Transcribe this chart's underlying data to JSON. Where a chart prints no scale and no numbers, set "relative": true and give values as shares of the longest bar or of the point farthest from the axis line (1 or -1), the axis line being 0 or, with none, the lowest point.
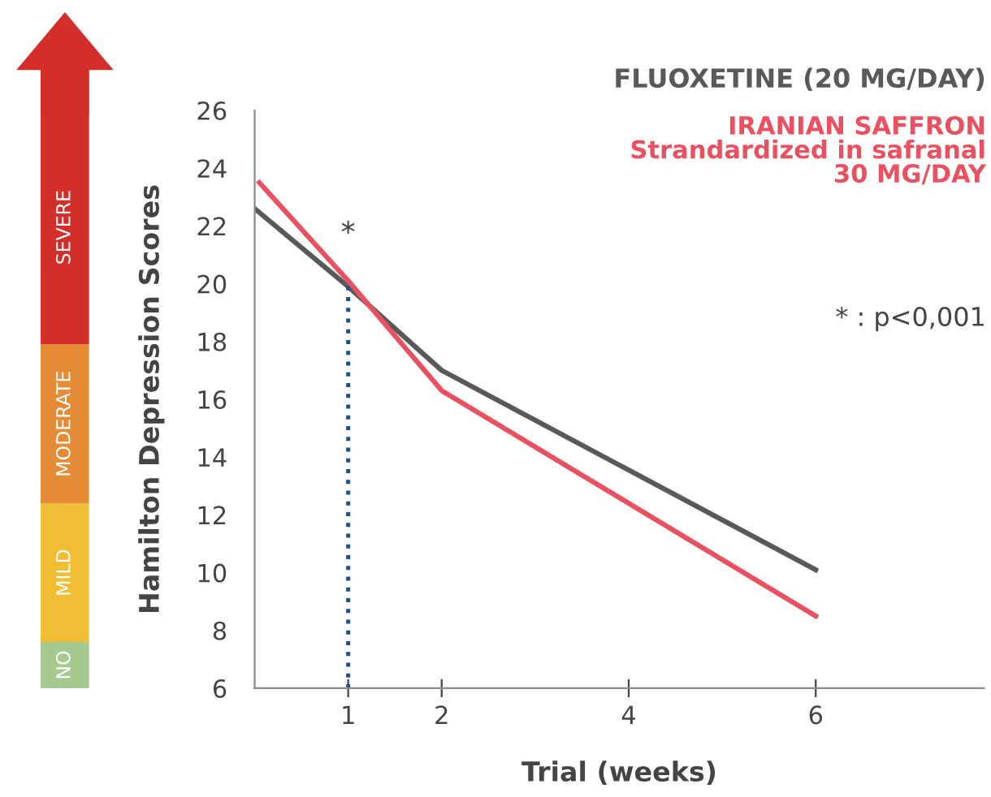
{
  "chart_data": [
    {
      "type": "bar",
      "stacked": true,
      "relative": true,
      "categories": [
        null
      ],
      "series": [
        {
          "name": "NO",
          "color": "#a6c98f",
          "values": [
            0.08
          ]
        },
        {
          "name": "MILD",
          "color": "#f0bd35",
          "values": [
            0.24
          ]
        },
        {
          "name": "MODERATE",
          "color": "#e58a35",
          "values": [
            0.275
          ]
        },
        {
          "name": "SEVERE",
          "color": "#d32f2a",
          "values": [
            0.405
          ]
        }
      ]
    },
    {
      "type": "line",
      "xlabel": "Trial (weeks)",
      "ylabel": "Hamilton Depression Scores",
      "xlim": [
        0,
        7.8
      ],
      "ylim": [
        6,
        26
      ],
      "xticks": [
        1,
        2,
        4,
        6
      ],
      "yticks": [
        6,
        8,
        10,
        12,
        14,
        16,
        18,
        20,
        22,
        24,
        26
      ],
      "legend": "top right",
      "line_style": "solid",
      "series": [
        {
          "name": "FLUOXETINE (20 MG/DAY)",
          "color": "#58595b",
          "x": [
            0,
            1,
            2,
            6
          ],
          "values": [
            22.6,
            19.9,
            17.0,
            10.1
          ]
        },
        {
          "name": "IRANIAN SAFFRON\nStrandardized in safranal\n30 MG/DAY",
          "color": "#ea5160",
          "x": [
            0.05,
            1,
            2,
            6
          ],
          "values": [
            23.5,
            20.1,
            16.3,
            8.5
          ]
        },
        {
          "type": "line",
          "color": "#1f4e8c",
          "line_style": "dotted",
          "x": [
            1,
            1
          ],
          "values": [
            6,
            20
          ]
        }
      ],
      "annotations": [
        "*",
        "* : p<0,001"
      ]
    }
  ]
}
